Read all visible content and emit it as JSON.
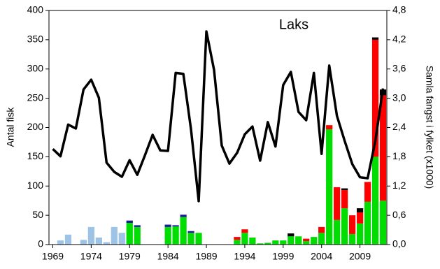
{
  "chart_data": {
    "type": "bar",
    "annotation": "Laks",
    "y_label": "Antal fisk",
    "y2_label": "Samla fangst i fylket (x1000)",
    "categories": [
      "1969",
      null,
      null,
      null,
      null,
      "1974",
      null,
      null,
      null,
      null,
      "1979",
      null,
      null,
      null,
      null,
      "1984",
      null,
      null,
      null,
      null,
      "1989",
      null,
      null,
      null,
      null,
      "1994",
      null,
      null,
      null,
      null,
      "1999",
      null,
      null,
      null,
      null,
      "2004",
      null,
      null,
      null,
      null,
      "2009",
      null,
      null,
      null
    ],
    "ylim": [
      0,
      400
    ],
    "yticks": [
      0,
      50,
      100,
      150,
      200,
      250,
      300,
      350,
      400
    ],
    "y2lim": [
      0,
      4.8
    ],
    "y2ticks": [
      {
        "value": 0,
        "label": "0,0"
      },
      {
        "value": 0.6,
        "label": "0,6"
      },
      {
        "value": 1.2,
        "label": "1,2"
      },
      {
        "value": 1.8,
        "label": "1,8"
      },
      {
        "value": 2.4,
        "label": "2,4"
      },
      {
        "value": 3.0,
        "label": "3,0"
      },
      {
        "value": 3.6,
        "label": "3,6"
      },
      {
        "value": 4.2,
        "label": "4,2"
      },
      {
        "value": 4.8,
        "label": "4,8"
      }
    ],
    "series": [
      {
        "color": "#9dc3e6",
        "values": [
          null,
          7,
          17,
          null,
          8,
          30,
          12,
          4,
          30,
          20,
          null,
          null,
          null,
          null,
          null,
          null,
          null,
          null,
          null,
          null,
          null,
          null,
          null,
          null,
          null,
          null,
          null,
          null,
          null,
          null,
          null,
          null,
          null,
          null,
          null,
          null,
          null,
          null,
          null,
          null,
          null,
          null,
          null,
          null
        ]
      },
      {
        "color": "#00dd00",
        "values": [
          null,
          null,
          null,
          null,
          null,
          null,
          null,
          null,
          null,
          null,
          37,
          30,
          null,
          null,
          null,
          30,
          31,
          47,
          20,
          20,
          null,
          null,
          null,
          null,
          8,
          20,
          12,
          2,
          3,
          7,
          7,
          14,
          14,
          6,
          13,
          20,
          197,
          42,
          62,
          18,
          36,
          73,
          150,
          75
        ]
      },
      {
        "color": "#1a1a9a",
        "values": [
          null,
          null,
          null,
          null,
          null,
          null,
          null,
          null,
          null,
          null,
          4,
          3,
          null,
          null,
          null,
          4,
          2,
          4,
          3,
          null,
          null,
          null,
          null,
          null,
          null,
          null,
          null,
          null,
          null,
          null,
          null,
          null,
          null,
          null,
          null,
          null,
          null,
          null,
          null,
          null,
          null,
          null,
          null,
          null
        ]
      },
      {
        "color": "#ff0000",
        "values": [
          null,
          null,
          null,
          null,
          null,
          null,
          null,
          null,
          null,
          null,
          null,
          null,
          null,
          null,
          null,
          null,
          null,
          null,
          null,
          null,
          null,
          null,
          null,
          null,
          5,
          6,
          null,
          null,
          null,
          null,
          null,
          null,
          null,
          4,
          null,
          10,
          7,
          56,
          31,
          32,
          19,
          34,
          200,
          180
        ]
      },
      {
        "color": "#000000",
        "values": [
          null,
          null,
          null,
          null,
          null,
          null,
          null,
          null,
          null,
          null,
          null,
          null,
          null,
          null,
          null,
          null,
          null,
          null,
          null,
          null,
          null,
          null,
          null,
          null,
          null,
          null,
          null,
          null,
          null,
          null,
          null,
          5,
          null,
          null,
          null,
          null,
          null,
          null,
          3,
          null,
          7,
          null,
          4,
          10
        ]
      },
      {
        "type": "line",
        "axis": "y2",
        "color": "#000000",
        "values": [
          1.96,
          1.81,
          2.46,
          2.38,
          3.18,
          3.38,
          3.01,
          1.68,
          1.49,
          1.39,
          1.73,
          1.43,
          1.83,
          2.25,
          1.93,
          1.92,
          3.52,
          3.5,
          2.36,
          0.89,
          4.37,
          3.58,
          2.03,
          1.66,
          1.88,
          2.26,
          2.42,
          1.72,
          2.51,
          2.01,
          3.27,
          3.54,
          2.72,
          2.55,
          3.52,
          1.86,
          3.67,
          2.64,
          2.13,
          1.65,
          1.38,
          1.36,
          2.12,
          3.2
        ]
      }
    ]
  }
}
